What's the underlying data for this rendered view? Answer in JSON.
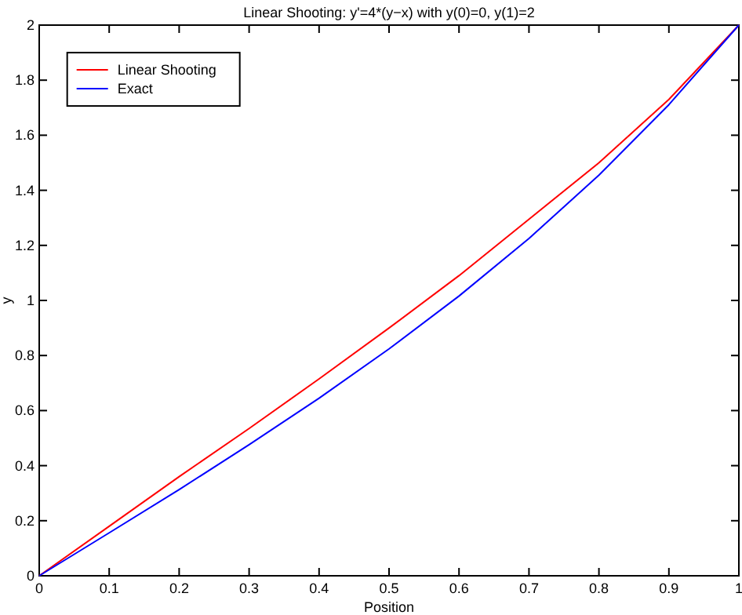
{
  "chart_data": {
    "type": "line",
    "title": "Linear Shooting: y'=4*(y−x)  with y(0)=0, y(1)=2",
    "xlabel": "Position",
    "ylabel": "y",
    "x": [
      0,
      0.1,
      0.2,
      0.3,
      0.4,
      0.5,
      0.6,
      0.7,
      0.8,
      0.9,
      1
    ],
    "series": [
      {
        "name": "Linear Shooting",
        "color": "#ff0000",
        "values": [
          0,
          0.18,
          0.36,
          0.535,
          0.715,
          0.9,
          1.09,
          1.295,
          1.5,
          1.73,
          2
        ]
      },
      {
        "name": "Exact",
        "color": "#0000ff",
        "values": [
          0,
          0.156,
          0.313,
          0.476,
          0.645,
          0.824,
          1.016,
          1.225,
          1.455,
          1.711,
          2
        ]
      }
    ],
    "xlim": [
      0,
      1
    ],
    "xticks": [
      0,
      0.1,
      0.2,
      0.3,
      0.4,
      0.5,
      0.6,
      0.7,
      0.8,
      0.9,
      1
    ],
    "ylim": [
      0,
      2
    ],
    "yticks": [
      0,
      0.2,
      0.4,
      0.6,
      0.8,
      1,
      1.2,
      1.4,
      1.6,
      1.8,
      2
    ],
    "legend": "top left",
    "grid": false
  }
}
